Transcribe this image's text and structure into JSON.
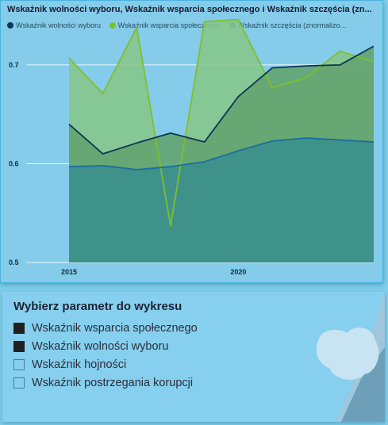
{
  "chart": {
    "title": "Wskaźnik wolności wyboru, Wskaźnik wsparcia społecznego i Wskaźnik szczęścia (zn...",
    "legend": [
      {
        "label": "Wskaźnik wolności wyboru",
        "color": "#0e3553"
      },
      {
        "label": "Wskaźnik wsparcia społecznego",
        "color": "#7fbf2a"
      },
      {
        "label": "Wskaźnik szczęścia (znormalizo...",
        "color": "#1a6fa0"
      }
    ]
  },
  "chart_data": {
    "type": "area",
    "title": "Wskaźnik wolności wyboru, Wskaźnik wsparcia społecznego i Wskaźnik szczęścia (zn...",
    "x": [
      2015,
      2016,
      2017,
      2018,
      2019,
      2020,
      2021,
      2022,
      2023,
      2024
    ],
    "x_tick_labels": [
      "2015",
      "2020"
    ],
    "y_tick_labels": [
      "0.5",
      "0.6",
      "0.7"
    ],
    "ylim": [
      0.5,
      0.72
    ],
    "grid": true,
    "legend_position": "top-left",
    "series": [
      {
        "name": "Wskaźnik wolności wyboru",
        "color": "#0e3553",
        "fill": "#62a36e",
        "values": [
          0.64,
          0.61,
          0.621,
          0.631,
          0.622,
          0.668,
          0.697,
          0.699,
          0.7,
          0.719
        ]
      },
      {
        "name": "Wskaźnik wsparcia społecznego",
        "color": "#7fbf2a",
        "fill": "#86c68a",
        "values": [
          0.707,
          0.671,
          0.738,
          0.537,
          0.744,
          0.746,
          0.677,
          0.687,
          0.714,
          0.703
        ]
      },
      {
        "name": "Wskaźnik szczęścia (znormalizo...",
        "color": "#1a6fa0",
        "fill": "#3a8f8c",
        "values": [
          0.597,
          0.598,
          0.594,
          0.597,
          0.602,
          0.613,
          0.623,
          0.626,
          0.624,
          0.622
        ]
      }
    ]
  },
  "slicer": {
    "title": "Wybierz parametr do wykresu",
    "items": [
      {
        "label": "Wskaźnik wsparcia społecznego",
        "checked": true
      },
      {
        "label": "Wskaźnik wolności wyboru",
        "checked": true
      },
      {
        "label": "Wskaźnik hojności",
        "checked": false
      },
      {
        "label": "Wskaźnik postrzegania korupcji",
        "checked": false
      }
    ]
  }
}
